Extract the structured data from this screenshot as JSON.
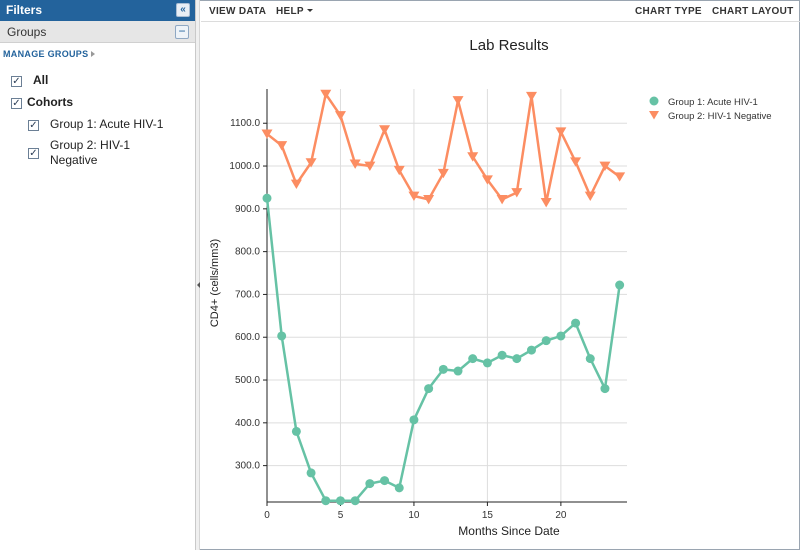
{
  "filters": {
    "title": "Filters",
    "collapse_icon": "double-chevron-left-icon",
    "groups_label": "Groups",
    "groups_collapse_icon": "minus-icon",
    "manage_groups": "MANAGE GROUPS",
    "tree": [
      {
        "label": "All",
        "checked": true,
        "bold": true
      },
      {
        "label": "Cohorts",
        "checked": true,
        "bold": true
      },
      {
        "label": "Group 1: Acute HIV-1",
        "checked": true
      },
      {
        "label": "Group 2: HIV-1",
        "label2": "Negative",
        "checked": true
      }
    ]
  },
  "toolbar": {
    "view_data": "VIEW DATA",
    "help": "HELP",
    "chart_type": "CHART TYPE",
    "chart_layout": "CHART LAYOUT"
  },
  "chart_data": {
    "type": "line",
    "title": "Lab Results",
    "xlabel": "Months Since Date",
    "ylabel": "CD4+ (cells/mm3)",
    "xlim": [
      0,
      24.5
    ],
    "ylim": [
      215,
      1180
    ],
    "x_ticks": [
      0,
      5,
      10,
      15,
      20
    ],
    "y_ticks": [
      300,
      400,
      500,
      600,
      700,
      800,
      900,
      1000,
      1100
    ],
    "y_tick_labels": [
      "300.0",
      "400.0",
      "500.0",
      "600.0",
      "700.0",
      "800.0",
      "900.0",
      "1000.0",
      "1100.0"
    ],
    "grid": true,
    "legend_position": "top-right",
    "series": [
      {
        "name": "Group 1: Acute HIV-1",
        "color": "#66c2a5",
        "marker": "circle",
        "x": [
          0,
          1,
          2,
          3,
          4,
          5,
          6,
          7,
          8,
          9,
          10,
          11,
          12,
          13,
          14,
          15,
          16,
          17,
          18,
          19,
          20,
          21,
          22,
          23,
          24
        ],
        "y": [
          925,
          603,
          380,
          283,
          218,
          218,
          218,
          258,
          265,
          248,
          407,
          480,
          525,
          521,
          550,
          540,
          558,
          550,
          570,
          592,
          603,
          633,
          550,
          480,
          722
        ]
      },
      {
        "name": "Group 2: HIV-1 Negative",
        "color": "#fc8d62",
        "marker": "triangle-down",
        "x": [
          0,
          1,
          2,
          3,
          4,
          5,
          6,
          7,
          8,
          9,
          10,
          11,
          12,
          13,
          14,
          15,
          16,
          17,
          18,
          19,
          20,
          21,
          22,
          23,
          24
        ],
        "y": [
          1075,
          1048,
          958,
          1008,
          1168,
          1118,
          1005,
          1000,
          1085,
          990,
          930,
          922,
          983,
          1153,
          1022,
          968,
          922,
          938,
          1163,
          915,
          1080,
          1010,
          930,
          1000,
          975
        ]
      }
    ]
  }
}
